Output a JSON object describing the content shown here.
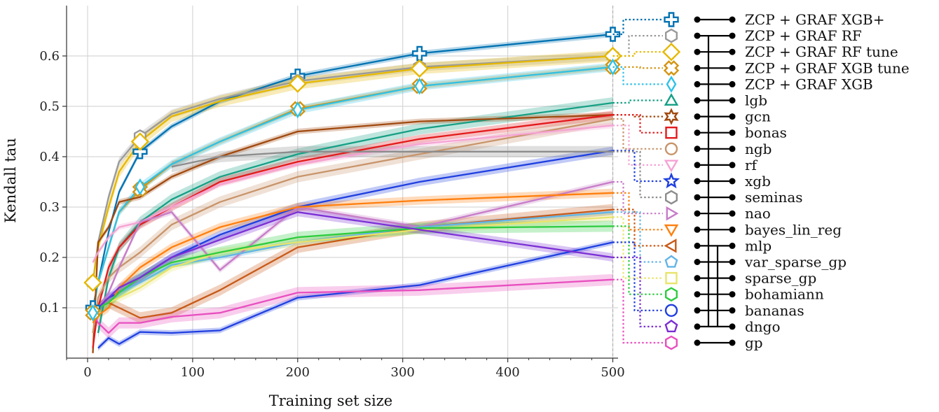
{
  "chart_data": {
    "type": "line",
    "xlabel": "Training set size",
    "ylabel": "Kendall tau",
    "xlim": [
      -20,
      505
    ],
    "ylim": [
      0.0,
      0.7
    ],
    "xticks": [
      0,
      100,
      200,
      300,
      400,
      500
    ],
    "yticks": [
      0.1,
      0.2,
      0.3,
      0.4,
      0.5,
      0.6
    ],
    "grid": true,
    "legend_position": "right",
    "series": [
      {
        "name": "ZCP + GRAF XGB+",
        "color": "#0072b2",
        "marker": "plus-thick",
        "x": [
          5,
          10,
          20,
          30,
          50,
          80,
          126,
          200,
          316,
          500
        ],
        "y": [
          0.1,
          0.15,
          0.25,
          0.33,
          0.41,
          0.46,
          0.51,
          0.56,
          0.605,
          0.643
        ]
      },
      {
        "name": "ZCP + GRAF RF",
        "color": "#999999",
        "marker": "hexagon",
        "x": [
          5,
          10,
          20,
          30,
          50,
          80,
          126,
          200,
          316,
          500
        ],
        "y": [
          0.15,
          0.23,
          0.32,
          0.39,
          0.44,
          0.485,
          0.515,
          0.55,
          0.578,
          0.6
        ]
      },
      {
        "name": "ZCP + GRAF RF tune",
        "color": "#e6b800",
        "marker": "diamond",
        "x": [
          5,
          10,
          20,
          30,
          50,
          80,
          126,
          200,
          316,
          500
        ],
        "y": [
          0.15,
          0.22,
          0.3,
          0.37,
          0.43,
          0.48,
          0.51,
          0.545,
          0.575,
          0.6
        ]
      },
      {
        "name": "ZCP + GRAF XGB tune",
        "color": "#d4940f",
        "marker": "x-box",
        "x": [
          5,
          10,
          20,
          30,
          50,
          80,
          126,
          200,
          316,
          500
        ],
        "y": [
          0.09,
          0.15,
          0.22,
          0.29,
          0.335,
          0.385,
          0.43,
          0.495,
          0.54,
          0.578
        ]
      },
      {
        "name": "ZCP + GRAF XGB",
        "color": "#2fc2e8",
        "marker": "thin-diamond",
        "x": [
          5,
          10,
          20,
          30,
          50,
          80,
          126,
          200,
          316,
          500
        ],
        "y": [
          0.09,
          0.15,
          0.22,
          0.29,
          0.34,
          0.385,
          0.43,
          0.493,
          0.54,
          0.578
        ]
      },
      {
        "name": "lgb",
        "color": "#16a085",
        "marker": "triangle-up",
        "x": [
          10,
          20,
          30,
          50,
          80,
          126,
          200,
          316,
          500
        ],
        "y": [
          0.05,
          0.16,
          0.22,
          0.27,
          0.315,
          0.36,
          0.405,
          0.455,
          0.507
        ]
      },
      {
        "name": "gcn",
        "color": "#a0490f",
        "marker": "star6",
        "x": [
          5,
          10,
          20,
          30,
          50,
          80,
          126,
          200,
          316,
          500
        ],
        "y": [
          0.01,
          0.23,
          0.26,
          0.31,
          0.32,
          0.36,
          0.4,
          0.45,
          0.47,
          0.483
        ]
      },
      {
        "name": "bonas",
        "color": "#e31a1c",
        "marker": "square",
        "x": [
          5,
          10,
          20,
          30,
          50,
          80,
          126,
          200,
          316,
          500
        ],
        "y": [
          0.02,
          0.1,
          0.18,
          0.22,
          0.265,
          0.3,
          0.35,
          0.39,
          0.435,
          0.483
        ]
      },
      {
        "name": "ngb",
        "color": "#c8946a",
        "marker": "circle",
        "x": [
          5,
          10,
          20,
          30,
          50,
          80,
          126,
          200,
          316,
          500
        ],
        "y": [
          0.05,
          0.12,
          0.16,
          0.18,
          0.21,
          0.265,
          0.31,
          0.36,
          0.405,
          0.475
        ]
      },
      {
        "name": "rf",
        "color": "#f5a3d3",
        "marker": "triangle-down",
        "x": [
          5,
          10,
          20,
          30,
          50,
          80,
          126,
          200,
          316,
          500
        ],
        "y": [
          0.19,
          0.21,
          0.24,
          0.26,
          0.27,
          0.3,
          0.345,
          0.385,
          0.425,
          0.462
        ]
      },
      {
        "name": "xgb",
        "color": "#1f3fe0",
        "marker": "star5",
        "x": [
          10,
          20,
          30,
          50,
          80,
          126,
          200,
          316,
          500
        ],
        "y": [
          0.1,
          0.12,
          0.13,
          0.16,
          0.2,
          0.245,
          0.3,
          0.35,
          0.412
        ]
      },
      {
        "name": "seminas",
        "color": "#8c8c8c",
        "marker": "hexagon",
        "x": [
          80,
          126,
          200,
          316,
          500
        ],
        "y": [
          0.38,
          0.4,
          0.41,
          0.41,
          0.41
        ]
      },
      {
        "name": "nao",
        "color": "#c77cc7",
        "marker": "triangle-right",
        "x": [
          5,
          10,
          20,
          30,
          50,
          80,
          126,
          200,
          316,
          500
        ],
        "y": [
          0.09,
          0.1,
          0.13,
          0.18,
          0.27,
          0.29,
          0.175,
          0.3,
          0.26,
          0.35
        ]
      },
      {
        "name": "bayes_lin_reg",
        "color": "#ff7f0e",
        "marker": "triangle-down",
        "x": [
          5,
          10,
          20,
          30,
          50,
          80,
          126,
          200,
          316,
          500
        ],
        "y": [
          0.07,
          0.085,
          0.1,
          0.14,
          0.18,
          0.22,
          0.26,
          0.3,
          0.313,
          0.328
        ]
      },
      {
        "name": "mlp",
        "color": "#c85a19",
        "marker": "triangle-left",
        "x": [
          5,
          10,
          20,
          30,
          50,
          80,
          126,
          200,
          316,
          500
        ],
        "y": [
          0.09,
          0.1,
          0.11,
          0.1,
          0.08,
          0.09,
          0.135,
          0.22,
          0.26,
          0.295
        ]
      },
      {
        "name": "var_sparse_gp",
        "color": "#63b5e6",
        "marker": "pentagon",
        "x": [
          5,
          10,
          20,
          30,
          50,
          80,
          126,
          200,
          316,
          500
        ],
        "y": [
          0.08,
          0.1,
          0.11,
          0.13,
          0.15,
          0.185,
          0.2,
          0.23,
          0.26,
          0.29
        ]
      },
      {
        "name": "sparse_gp",
        "color": "#e8e46b",
        "marker": "square",
        "x": [
          5,
          10,
          20,
          30,
          50,
          80,
          126,
          200,
          316,
          500
        ],
        "y": [
          0.08,
          0.1,
          0.11,
          0.12,
          0.14,
          0.18,
          0.21,
          0.23,
          0.255,
          0.28
        ]
      },
      {
        "name": "bohamiann",
        "color": "#2ecc40",
        "marker": "hexagon",
        "x": [
          5,
          10,
          20,
          30,
          50,
          80,
          126,
          200,
          316,
          500
        ],
        "y": [
          0.08,
          0.1,
          0.11,
          0.13,
          0.16,
          0.19,
          0.21,
          0.24,
          0.258,
          0.262
        ]
      },
      {
        "name": "bananas",
        "color": "#1f3fe0",
        "marker": "circle",
        "x": [
          10,
          20,
          30,
          50,
          80,
          126,
          200,
          316,
          500
        ],
        "y": [
          0.02,
          0.04,
          0.028,
          0.052,
          0.05,
          0.055,
          0.12,
          0.145,
          0.23
        ]
      },
      {
        "name": "dngo",
        "color": "#7b2fd4",
        "marker": "pentagon",
        "x": [
          5,
          10,
          20,
          30,
          50,
          80,
          126,
          200,
          316,
          500
        ],
        "y": [
          0.09,
          0.1,
          0.12,
          0.14,
          0.16,
          0.2,
          0.235,
          0.29,
          0.255,
          0.2
        ]
      },
      {
        "name": "gp",
        "color": "#e84fbf",
        "marker": "hexagon",
        "x": [
          5,
          10,
          20,
          30,
          50,
          80,
          126,
          200,
          316,
          500
        ],
        "y": [
          0.09,
          0.07,
          0.05,
          0.07,
          0.07,
          0.082,
          0.09,
          0.13,
          0.135,
          0.156
        ]
      }
    ]
  }
}
